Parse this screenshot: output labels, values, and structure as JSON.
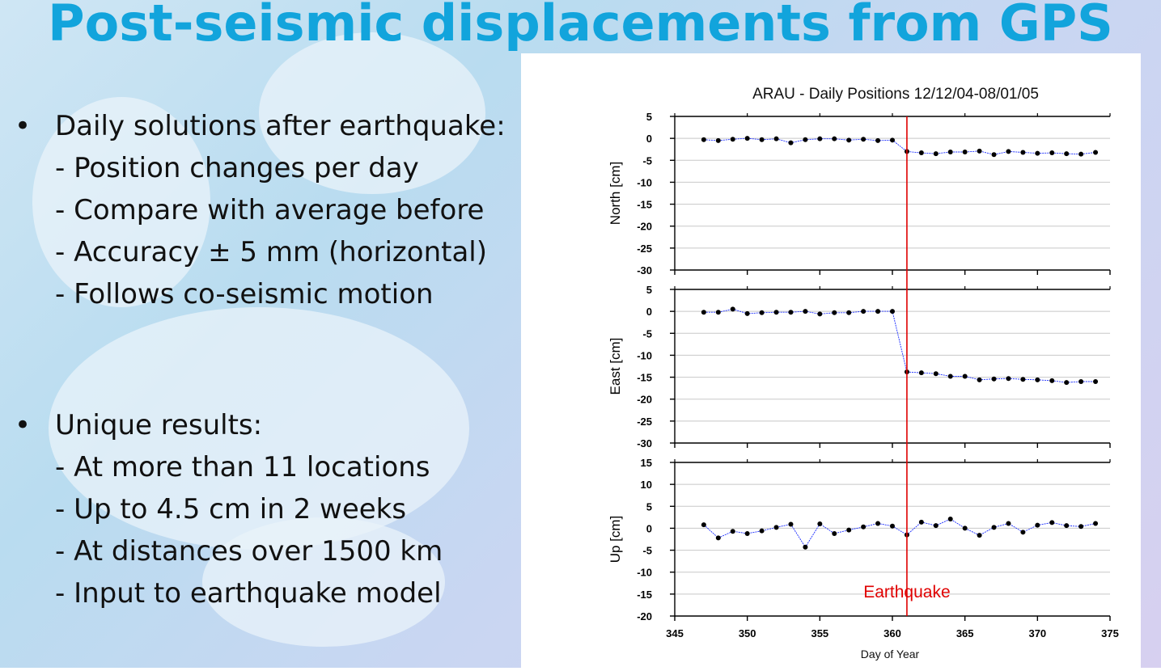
{
  "slide": {
    "title": "Post-seismic displacements from GPS",
    "bullet1": {
      "marker": "•",
      "text": "Daily solutions after earthquake:",
      "subs": [
        "- Position changes per day",
        "- Compare with average before",
        "- Accuracy ± 5 mm (horizontal)",
        "- Follows co-seismic motion"
      ]
    },
    "bullet2": {
      "marker": "•",
      "text": "Unique results:",
      "subs": [
        "- At more than 11 locations",
        "- Up to 4.5 cm in 2 weeks",
        "- At distances over 1500 km",
        "- Input to earthquake model"
      ]
    }
  },
  "chart_data": {
    "type": "line",
    "title": "ARAU - Daily Positions 12/12/04-08/01/05",
    "xlabel": "Day of Year",
    "xlim": [
      345,
      375
    ],
    "xticks": [
      345,
      350,
      355,
      360,
      365,
      370,
      375
    ],
    "x": [
      347,
      348,
      349,
      350,
      351,
      352,
      353,
      354,
      355,
      356,
      357,
      358,
      359,
      360,
      361,
      362,
      363,
      364,
      365,
      366,
      367,
      368,
      369,
      370,
      371,
      372,
      373,
      374
    ],
    "panels": [
      {
        "name": "North",
        "ylabel": "North [cm]",
        "ylim": [
          -30,
          5
        ],
        "yticks": [
          5,
          0,
          -5,
          -10,
          -15,
          -20,
          -25,
          -30
        ],
        "values": [
          -0.3,
          -0.5,
          -0.2,
          0,
          -0.3,
          -0.1,
          -1,
          -0.3,
          -0.1,
          -0.1,
          -0.4,
          -0.2,
          -0.5,
          -0.4,
          -3,
          -3.3,
          -3.5,
          -3.1,
          -3.1,
          -2.9,
          -3.7,
          -3,
          -3.2,
          -3.4,
          -3.3,
          -3.5,
          -3.6,
          -3.2
        ]
      },
      {
        "name": "East",
        "ylabel": "East [cm]",
        "ylim": [
          -30,
          5
        ],
        "yticks": [
          5,
          0,
          -5,
          -10,
          -15,
          -20,
          -25,
          -30
        ],
        "values": [
          -0.2,
          -0.2,
          0.5,
          -0.5,
          -0.3,
          -0.2,
          -0.2,
          0,
          -0.6,
          -0.3,
          -0.3,
          0,
          0,
          0,
          -13.8,
          -14,
          -14.2,
          -14.8,
          -14.8,
          -15.6,
          -15.4,
          -15.3,
          -15.5,
          -15.6,
          -15.8,
          -16.2,
          -16,
          -16
        ]
      },
      {
        "name": "Up",
        "ylabel": "Up [cm]",
        "ylim": [
          -20,
          15
        ],
        "yticks": [
          15,
          10,
          5,
          0,
          -5,
          -10,
          -15,
          -20
        ],
        "values": [
          0.8,
          -2.2,
          -0.7,
          -1.2,
          -0.6,
          0.2,
          0.9,
          -4.3,
          1,
          -1.2,
          -0.4,
          0.3,
          1.1,
          0.5,
          -1.5,
          1.4,
          0.6,
          2.1,
          0,
          -1.6,
          0.2,
          1.1,
          -0.9,
          0.7,
          1.3,
          0.6,
          0.4,
          1.1
        ]
      }
    ],
    "event": {
      "x": 361,
      "label": "Earthquake"
    },
    "colors": {
      "line": "#1a2cff",
      "marker": "#000000",
      "event": "#e00000",
      "grid": "#c8c8c8"
    }
  }
}
